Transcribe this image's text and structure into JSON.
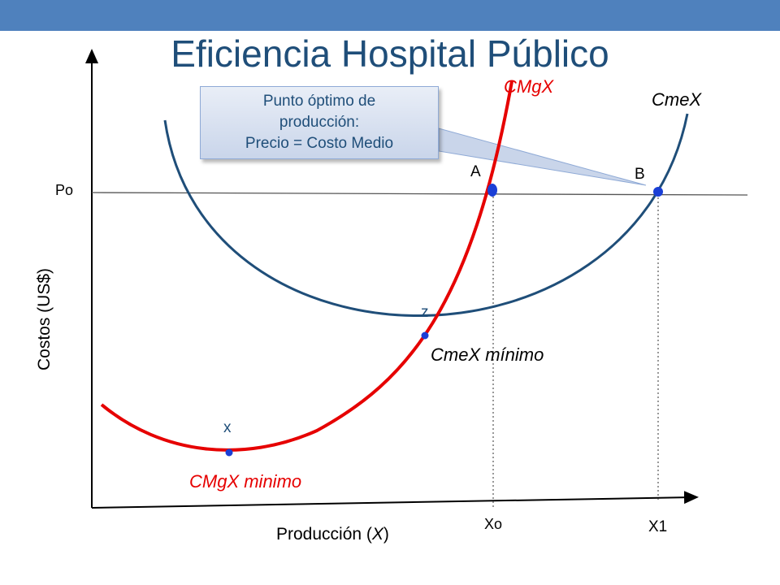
{
  "title": "Eficiencia Hospital Público",
  "callout": {
    "line1": "Punto óptimo de",
    "line2": "producción:",
    "line3": "Precio = Costo Medio"
  },
  "labels": {
    "cmgx": "CMgX",
    "cmex": "CmeX",
    "cmex_min": "CmeX mínimo",
    "cmgx_min": "CMgX minimo",
    "point_a": "A",
    "point_b": "B",
    "point_z": "z",
    "point_x": "x",
    "po": "Po",
    "xo": "Xo",
    "x1": "X1",
    "y_axis": "Costos (US$)",
    "x_axis_prefix": "Producción (",
    "x_axis_var": "X",
    "x_axis_suffix": ")"
  },
  "colors": {
    "header_bar": "#4f81bd",
    "title": "#1f4e79",
    "cmgx_curve": "#e60000",
    "cmex_curve": "#1f4e79",
    "points": "#1a3fd6"
  }
}
